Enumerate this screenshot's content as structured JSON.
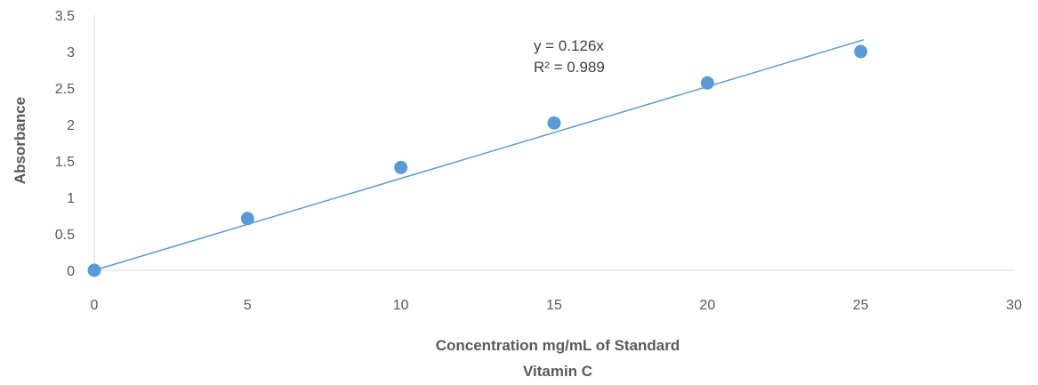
{
  "chart_data": {
    "type": "scatter",
    "title": "",
    "xlabel": [
      "Concentration mg/mL of Standard",
      "Vitamin C"
    ],
    "ylabel": "Absorbance",
    "xlim": [
      0,
      30
    ],
    "ylim": [
      0,
      3.5
    ],
    "x_ticks": [
      "0",
      "5",
      "10",
      "15",
      "20",
      "25",
      "30"
    ],
    "y_ticks": [
      "0",
      "0.5",
      "1",
      "1.5",
      "2",
      "2.5",
      "3",
      "3.5"
    ],
    "grid": false,
    "series": [
      {
        "x": [
          0,
          5,
          10,
          15,
          20,
          25
        ],
        "y": [
          0,
          0.71,
          1.41,
          2.02,
          2.57,
          3.0
        ],
        "color": "#5b9bd5"
      }
    ],
    "trendline": {
      "type": "linear",
      "slope": 0.126,
      "x_range": [
        0,
        25.1
      ],
      "color": "#5b9bd5",
      "equation": "y = 0.126x",
      "r_squared": "R² = 0.989"
    }
  }
}
